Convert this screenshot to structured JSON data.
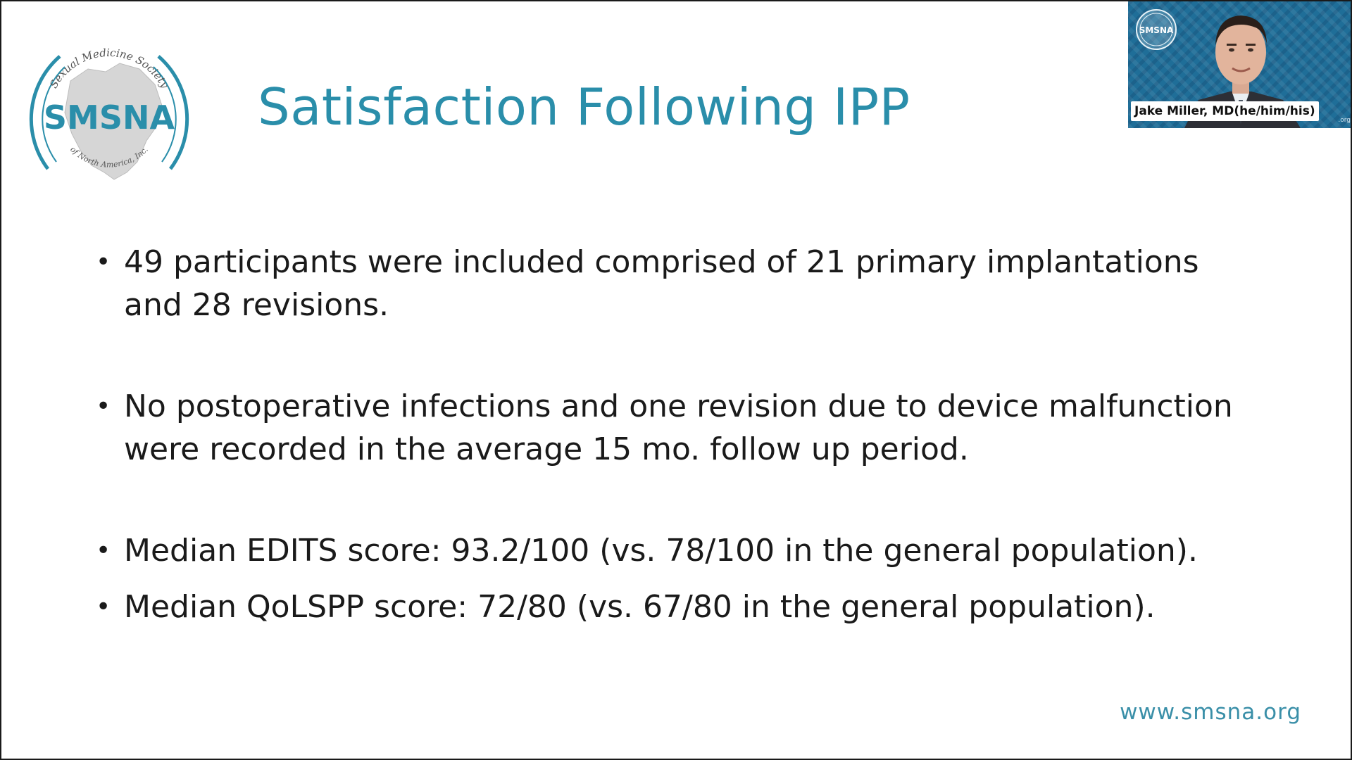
{
  "slide": {
    "title": "Satisfaction Following IPP",
    "bullet_symbol": "•",
    "bullets": [
      "49 participants were included comprised of 21 primary implantations and 28 revisions.",
      "No postoperative infections and one revision due to device malfunction were recorded in the average 15 mo. follow up period.",
      "Median EDITS score: 93.2/100 (vs. 78/100 in the general population).",
      "Median QoLSPP score: 72/80 (vs. 67/80 in the general population)."
    ],
    "footer_url": "www.smsna.org"
  },
  "logo": {
    "acronym": "SMSNA",
    "ring_text_top": "Sexual Medicine Society",
    "ring_text_bottom": "of North America, Inc.",
    "color": "#2a8eaa"
  },
  "video_tile": {
    "participant_name": "Jake Miller, MD(he/him/his)",
    "tile_logo_text": "SMSNA",
    "corner_tag": ".org",
    "background_color": "#1f6e98"
  }
}
